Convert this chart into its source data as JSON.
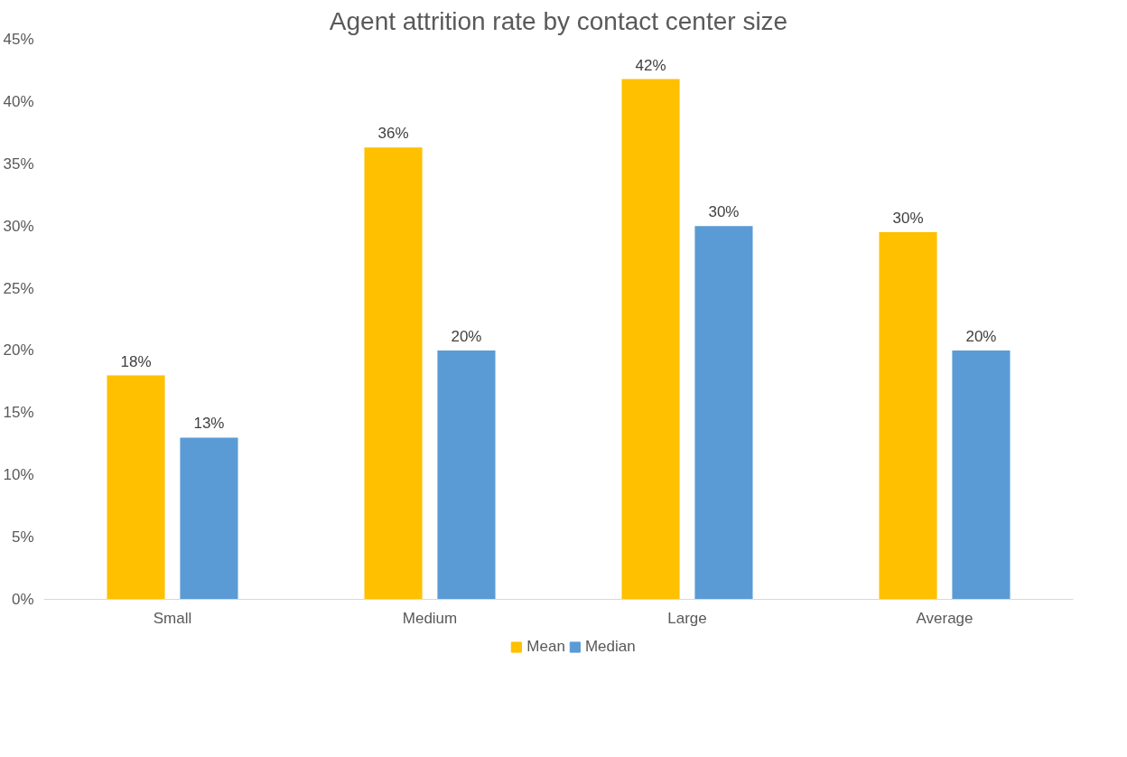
{
  "chart_data": {
    "type": "bar",
    "title": "Agent attrition rate by contact center size",
    "categories": [
      "Small",
      "Medium",
      "Large",
      "Average"
    ],
    "series": [
      {
        "name": "Mean",
        "color": "#ffc000",
        "values": [
          18,
          36.3,
          41.8,
          29.5
        ],
        "value_labels": [
          "18%",
          "36%",
          "42%",
          "30%"
        ]
      },
      {
        "name": "Median",
        "color": "#5b9bd5",
        "values": [
          13,
          20,
          30,
          20
        ],
        "value_labels": [
          "13%",
          "20%",
          "30%",
          "20%"
        ]
      }
    ],
    "ylim": [
      0,
      45
    ],
    "yticks": [
      {
        "value": 0,
        "label": "0%"
      },
      {
        "value": 5,
        "label": "5%"
      },
      {
        "value": 10,
        "label": "10%"
      },
      {
        "value": 15,
        "label": "15%"
      },
      {
        "value": 20,
        "label": "20%"
      },
      {
        "value": 25,
        "label": "25%"
      },
      {
        "value": 30,
        "label": "30%"
      },
      {
        "value": 35,
        "label": "35%"
      },
      {
        "value": 40,
        "label": "40%"
      },
      {
        "value": 45,
        "label": "45%"
      }
    ],
    "grid": false,
    "legend": "bottom"
  }
}
